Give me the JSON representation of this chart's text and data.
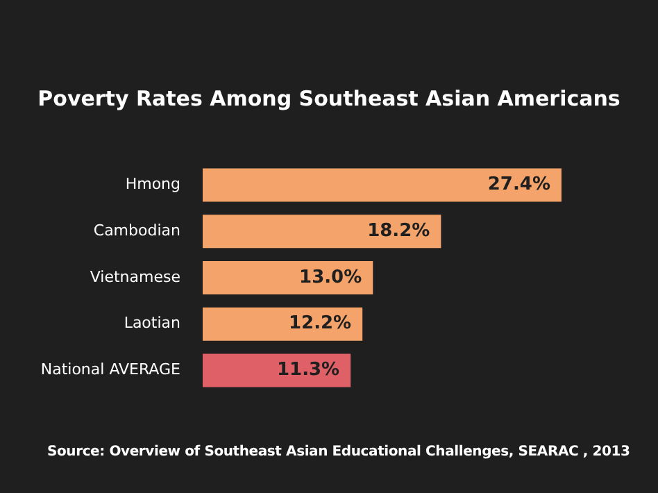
{
  "chart_data": {
    "type": "bar",
    "orientation": "horizontal",
    "title": "Poverty Rates Among Southeast Asian Americans",
    "categories": [
      "Hmong",
      "Cambodian",
      "Vietnamese",
      "Laotian",
      "National AVERAGE"
    ],
    "values": [
      27.4,
      18.2,
      13.0,
      12.2,
      11.3
    ],
    "value_labels": [
      "27.4%",
      "18.2%",
      "13.0%",
      "12.2%",
      "11.3%"
    ],
    "colors": [
      "#f4a46a",
      "#f4a46a",
      "#f4a46a",
      "#f4a46a",
      "#e06068"
    ],
    "annotations": [
      "Source: Overview of Southeast Asian Educational Challenges, SEARAC , 2013"
    ],
    "legend": false
  }
}
